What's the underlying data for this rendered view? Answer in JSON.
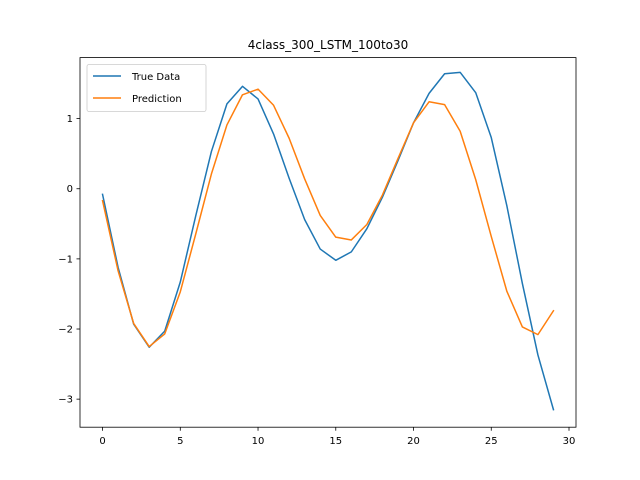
{
  "chart_data": {
    "type": "line",
    "title": "4class_300_LSTM_100to30",
    "xlabel": "",
    "ylabel": "",
    "xlim": [
      -1.45,
      30.45
    ],
    "ylim": [
      -3.4,
      1.87
    ],
    "x_ticks": [
      0,
      5,
      10,
      15,
      20,
      25,
      30
    ],
    "y_ticks": [
      -3,
      -2,
      -1,
      0,
      1
    ],
    "y_tick_labels": [
      "−3",
      "−2",
      "−1",
      "0",
      "1"
    ],
    "x": [
      0,
      1,
      2,
      3,
      4,
      5,
      6,
      7,
      8,
      9,
      10,
      11,
      12,
      13,
      14,
      15,
      16,
      17,
      18,
      19,
      20,
      21,
      22,
      23,
      24,
      25,
      26,
      27,
      28,
      29
    ],
    "series": [
      {
        "name": "True Data",
        "color": "#1f77b4",
        "values": [
          -0.08,
          -1.12,
          -1.93,
          -2.26,
          -2.03,
          -1.33,
          -0.38,
          0.53,
          1.21,
          1.46,
          1.28,
          0.78,
          0.15,
          -0.44,
          -0.86,
          -1.02,
          -0.9,
          -0.57,
          -0.12,
          0.4,
          0.94,
          1.36,
          1.64,
          1.66,
          1.37,
          0.73,
          -0.24,
          -1.35,
          -2.37,
          -3.15
        ]
      },
      {
        "name": "Prediction",
        "color": "#ff7f0e",
        "values": [
          -0.17,
          -1.17,
          -1.92,
          -2.25,
          -2.07,
          -1.47,
          -0.64,
          0.21,
          0.91,
          1.34,
          1.42,
          1.19,
          0.72,
          0.14,
          -0.38,
          -0.69,
          -0.73,
          -0.51,
          -0.09,
          0.43,
          0.94,
          1.24,
          1.2,
          0.82,
          0.13,
          -0.68,
          -1.46,
          -1.97,
          -2.08,
          -1.74
        ]
      }
    ],
    "legend_position": "top-left",
    "grid": false
  }
}
